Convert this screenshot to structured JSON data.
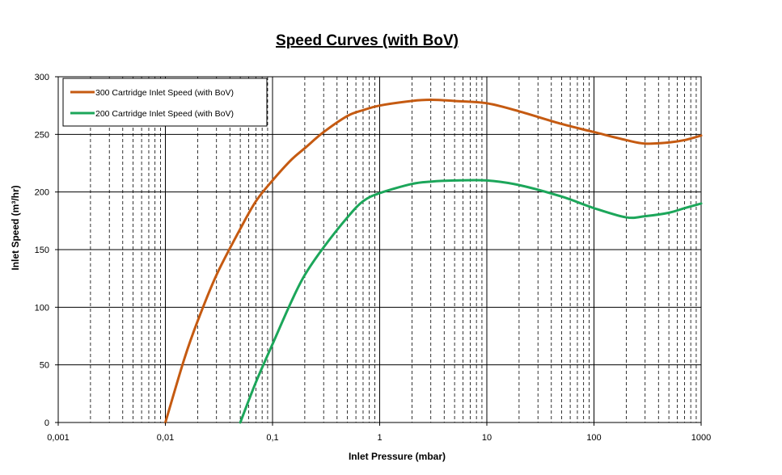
{
  "chart_data": {
    "type": "line",
    "title": "Speed Curves (with  BoV)",
    "xlabel": "Inlet Pressure   (mbar)",
    "ylabel": "Inlet Speed  (m³/hr)",
    "xscale": "log",
    "xlim": [
      0.001,
      1000
    ],
    "ylim": [
      0,
      300
    ],
    "x_tick_labels": [
      "0,001",
      "0,01",
      "0,1",
      "1",
      "10",
      "100",
      "1000"
    ],
    "y_ticks": [
      0,
      50,
      100,
      150,
      200,
      250,
      300
    ],
    "grid": true,
    "legend_position": "top-left",
    "series": [
      {
        "name": "300 Cartridge Inlet Speed (with BoV)",
        "color": "#c55a11",
        "x": [
          0.01,
          0.015,
          0.02,
          0.03,
          0.05,
          0.07,
          0.1,
          0.15,
          0.2,
          0.3,
          0.5,
          0.7,
          1,
          2,
          3,
          5,
          10,
          20,
          50,
          100,
          200,
          300,
          500,
          700,
          1000
        ],
        "y": [
          0,
          55,
          88,
          128,
          168,
          192,
          210,
          228,
          238,
          252,
          266,
          271,
          275,
          279,
          280,
          279,
          277,
          270,
          259,
          252,
          245,
          242,
          243,
          245,
          249
        ]
      },
      {
        "name": "200 Cartridge Inlet Speed (with BoV)",
        "color": "#1ca65a",
        "x": [
          0.05,
          0.07,
          0.1,
          0.15,
          0.2,
          0.3,
          0.5,
          0.7,
          1,
          2,
          3,
          5,
          10,
          20,
          50,
          100,
          200,
          300,
          500,
          700,
          1000
        ],
        "y": [
          0,
          35,
          68,
          105,
          128,
          152,
          178,
          192,
          199,
          207,
          209,
          210,
          210,
          206,
          196,
          186,
          178,
          179,
          182,
          186,
          190
        ]
      }
    ]
  }
}
